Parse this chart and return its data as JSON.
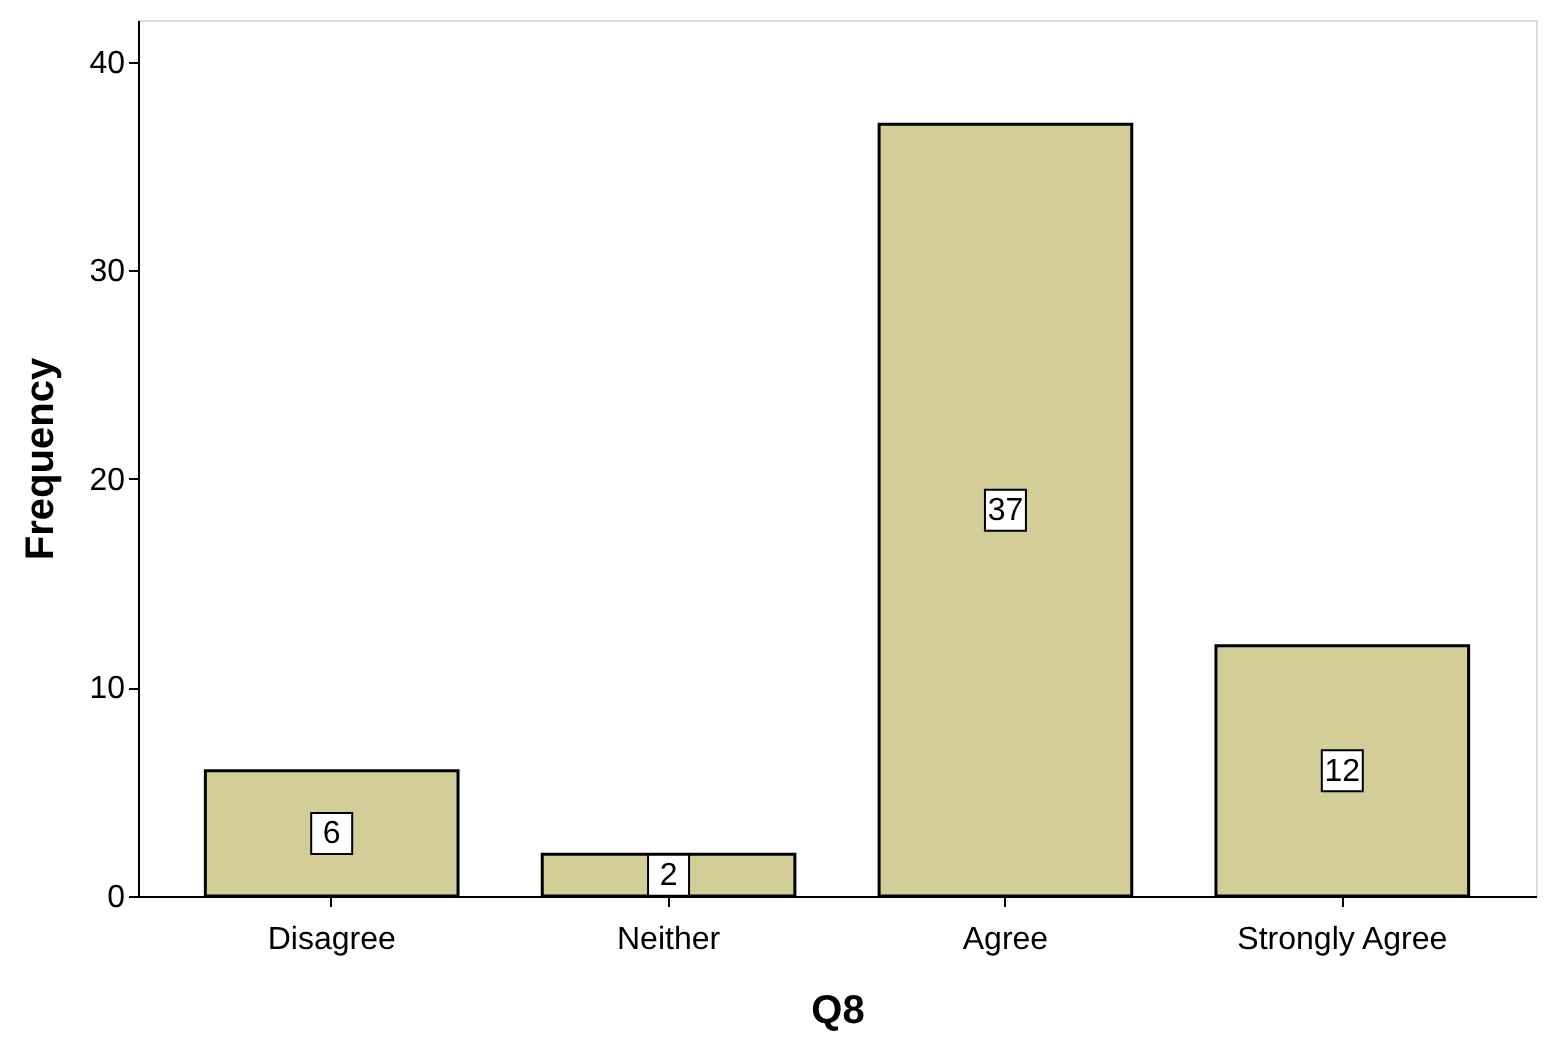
{
  "chart_data": {
    "type": "bar",
    "xlabel": "Q8",
    "ylabel": "Frequency",
    "categories": [
      "Disagree",
      "Neither",
      "Agree",
      "Strongly Agree"
    ],
    "values": [
      6,
      2,
      37,
      12
    ],
    "color": "#d3ce97",
    "ylim": [
      0,
      42
    ],
    "yticks": [
      0,
      10,
      20,
      30,
      40
    ],
    "grid": false,
    "data_labels": true
  }
}
